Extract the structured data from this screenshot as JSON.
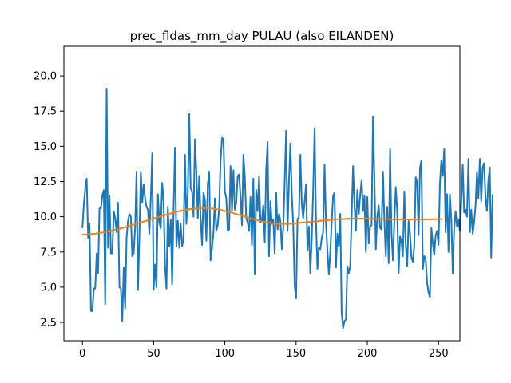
{
  "chart_data": {
    "type": "line",
    "title": "prec_fldas_mm_day PULAU (also EILANDEN)",
    "xlabel": "",
    "ylabel": "",
    "xlim": [
      -13,
      265
    ],
    "ylim": [
      1.2,
      22.1
    ],
    "xticks": [
      0,
      50,
      100,
      150,
      200,
      250
    ],
    "yticks": [
      2.5,
      5.0,
      7.5,
      10.0,
      12.5,
      15.0,
      17.5,
      20.0
    ],
    "ytick_labels": [
      "2.5",
      "5.0",
      "7.5",
      "10.0",
      "12.5",
      "15.0",
      "17.5",
      "20.0"
    ],
    "xtick_labels": [
      "0",
      "50",
      "100",
      "150",
      "200",
      "250"
    ],
    "grid": false,
    "series": [
      {
        "color": "#1f77b4",
        "values": [
          9.2,
          10.9,
          12.0,
          12.7,
          8.5,
          9.5,
          3.3,
          3.3,
          4.9,
          4.9,
          7.4,
          6.0,
          10.6,
          10.6,
          11.5,
          11.9,
          3.8,
          19.1,
          7.8,
          11.5,
          7.4,
          7.4,
          10.4,
          9.9,
          8.9,
          11.0,
          5.0,
          4.9,
          2.6,
          6.4,
          3.5,
          8.5,
          9.7,
          10.2,
          10.0,
          7.2,
          7.4,
          9.2,
          13.2,
          4.8,
          8.6,
          13.2,
          11.0,
          12.3,
          11.3,
          10.7,
          10.5,
          8.8,
          11.3,
          14.5,
          4.8,
          6.6,
          5.0,
          11.6,
          9.6,
          9.2,
          12.4,
          11.1,
          6.5,
          4.9,
          10.7,
          7.9,
          9.8,
          5.2,
          10.5,
          14.9,
          7.9,
          9.7,
          7.8,
          9.5,
          7.9,
          8.5,
          14.4,
          9.5,
          11.7,
          17.3,
          12.0,
          11.8,
          10.0,
          15.5,
          13.2,
          9.9,
          12.9,
          9.8,
          8.0,
          11.7,
          11.2,
          8.3,
          12.3,
          13.2,
          6.9,
          7.8,
          8.9,
          11.3,
          9.0,
          9.4,
          10.6,
          14.0,
          15.6,
          15.5,
          11.8,
          11.3,
          9.0,
          9.1,
          13.6,
          10.4,
          13.3,
          10.5,
          11.0,
          12.9,
          13.0,
          11.4,
          9.4,
          14.4,
          12.9,
          9.9,
          9.6,
          9.0,
          11.4,
          8.0,
          12.7,
          5.9,
          11.9,
          10.4,
          12.9,
          9.6,
          9.7,
          10.8,
          8.2,
          13.3,
          15.3,
          7.2,
          11.1,
          9.5,
          9.8,
          7.4,
          11.7,
          9.1,
          10.2,
          9.7,
          7.7,
          9.2,
          12.5,
          16.1,
          9.0,
          12.5,
          15.2,
          11.6,
          9.4,
          5.1,
          4.2,
          9.8,
          10.0,
          14.4,
          10.9,
          9.9,
          11.1,
          12.3,
          7.6,
          9.3,
          6.0,
          8.4,
          11.9,
          16.3,
          9.6,
          6.3,
          7.8,
          7.7,
          8.5,
          8.9,
          13.7,
          9.5,
          7.6,
          5.9,
          7.5,
          9.6,
          11.5,
          11.7,
          6.4,
          8.8,
          7.9,
          10.2,
          3.2,
          2.1,
          2.6,
          2.7,
          6.5,
          6.0,
          6.5,
          10.0,
          13.6,
          10.8,
          9.0,
          11.9,
          10.2,
          11.5,
          12.6,
          10.4,
          11.5,
          7.5,
          11.4,
          8.1,
          9.3,
          9.4,
          17.1,
          12.7,
          7.7,
          10.0,
          10.8,
          9.2,
          9.1,
          13.2,
          9.7,
          7.2,
          10.7,
          6.7,
          14.8,
          8.8,
          6.9,
          9.7,
          12.1,
          10.4,
          6.0,
          8.6,
          8.2,
          7.2,
          11.8,
          8.0,
          6.5,
          9.7,
          8.8,
          7.1,
          6.8,
          8.0,
          12.8,
          12.5,
          8.7,
          13.5,
          14.0,
          6.3,
          7.2,
          7.0,
          5.3,
          4.6,
          4.3,
          9.2,
          8.1,
          7.3,
          8.7,
          9.0,
          8.0,
          12.4,
          14.0,
          12.9,
          14.8,
          8.9,
          11.6,
          7.5,
          11.6,
          9.8,
          6.0,
          9.1,
          10.4,
          9.3,
          9.8,
          9.0,
          11.0,
          13.7,
          10.3,
          10.5,
          10.0,
          14.1,
          8.9,
          10.5,
          8.8,
          9.6,
          10.8,
          13.2,
          11.3,
          14.1,
          11.1,
          13.5,
          13.8,
          11.3,
          10.4,
          12.6,
          13.5,
          7.1,
          11.6
        ]
      },
      {
        "color": "#ff7f0e",
        "values": [
          8.75,
          8.74,
          8.74,
          8.74,
          8.75,
          8.76,
          8.77,
          8.78,
          8.79,
          8.8,
          8.82,
          8.83,
          8.85,
          8.87,
          8.88,
          8.9,
          8.92,
          8.94,
          8.96,
          8.98,
          9.0,
          9.03,
          9.05,
          9.08,
          9.1,
          9.13,
          9.15,
          9.18,
          9.2,
          9.23,
          9.26,
          9.29,
          9.32,
          9.35,
          9.38,
          9.41,
          9.44,
          9.47,
          9.5,
          9.53,
          9.56,
          9.6,
          9.63,
          9.66,
          9.69,
          9.72,
          9.76,
          9.79,
          9.82,
          9.85,
          9.88,
          9.91,
          9.94,
          9.97,
          10.0,
          10.03,
          10.06,
          10.09,
          10.12,
          10.15,
          10.18,
          10.21,
          10.24,
          10.27,
          10.3,
          10.32,
          10.35,
          10.37,
          10.4,
          10.42,
          10.44,
          10.46,
          10.48,
          10.5,
          10.52,
          10.53,
          10.55,
          10.56,
          10.57,
          10.58,
          10.59,
          10.6,
          10.6,
          10.61,
          10.61,
          10.61,
          10.61,
          10.61,
          10.6,
          10.6,
          10.59,
          10.58,
          10.57,
          10.55,
          10.54,
          10.52,
          10.5,
          10.48,
          10.46,
          10.44,
          10.41,
          10.39,
          10.36,
          10.34,
          10.31,
          10.28,
          10.25,
          10.22,
          10.19,
          10.16,
          10.13,
          10.1,
          10.07,
          10.04,
          10.01,
          9.98,
          9.95,
          9.92,
          9.89,
          9.86,
          9.83,
          9.8,
          9.77,
          9.74,
          9.72,
          9.69,
          9.67,
          9.65,
          9.63,
          9.61,
          9.59,
          9.57,
          9.56,
          9.54,
          9.53,
          9.52,
          9.51,
          9.5,
          9.5,
          9.49,
          9.49,
          9.49,
          9.49,
          9.49,
          9.5,
          9.5,
          9.51,
          9.51,
          9.52,
          9.53,
          9.54,
          9.55,
          9.56,
          9.57,
          9.58,
          9.59,
          9.6,
          9.61,
          9.62,
          9.63,
          9.64,
          9.65,
          9.66,
          9.67,
          9.68,
          9.69,
          9.7,
          9.71,
          9.72,
          9.73,
          9.74,
          9.75,
          9.76,
          9.77,
          9.78,
          9.79,
          9.8,
          9.8,
          9.81,
          9.82,
          9.83,
          9.83,
          9.84,
          9.84,
          9.85,
          9.85,
          9.86,
          9.86,
          9.86,
          9.86,
          9.87,
          9.87,
          9.87,
          9.87,
          9.87,
          9.87,
          9.87,
          9.87,
          9.87,
          9.87,
          9.87,
          9.87,
          9.86,
          9.86,
          9.86,
          9.86,
          9.85,
          9.85,
          9.85,
          9.84,
          9.84,
          9.84,
          9.83,
          9.83,
          9.83,
          9.82,
          9.82,
          9.82,
          9.81,
          9.81,
          9.81,
          9.8,
          9.8,
          9.8,
          9.8,
          9.8,
          9.8,
          9.8,
          9.8,
          9.8,
          9.8,
          9.8,
          9.8,
          9.8,
          9.8,
          9.8,
          9.8,
          9.8,
          9.8,
          9.8,
          9.8,
          9.81,
          9.81,
          9.81,
          9.81,
          9.82,
          9.82,
          9.82,
          9.82,
          9.83,
          9.83,
          9.83,
          9.83,
          9.84
        ]
      }
    ]
  }
}
